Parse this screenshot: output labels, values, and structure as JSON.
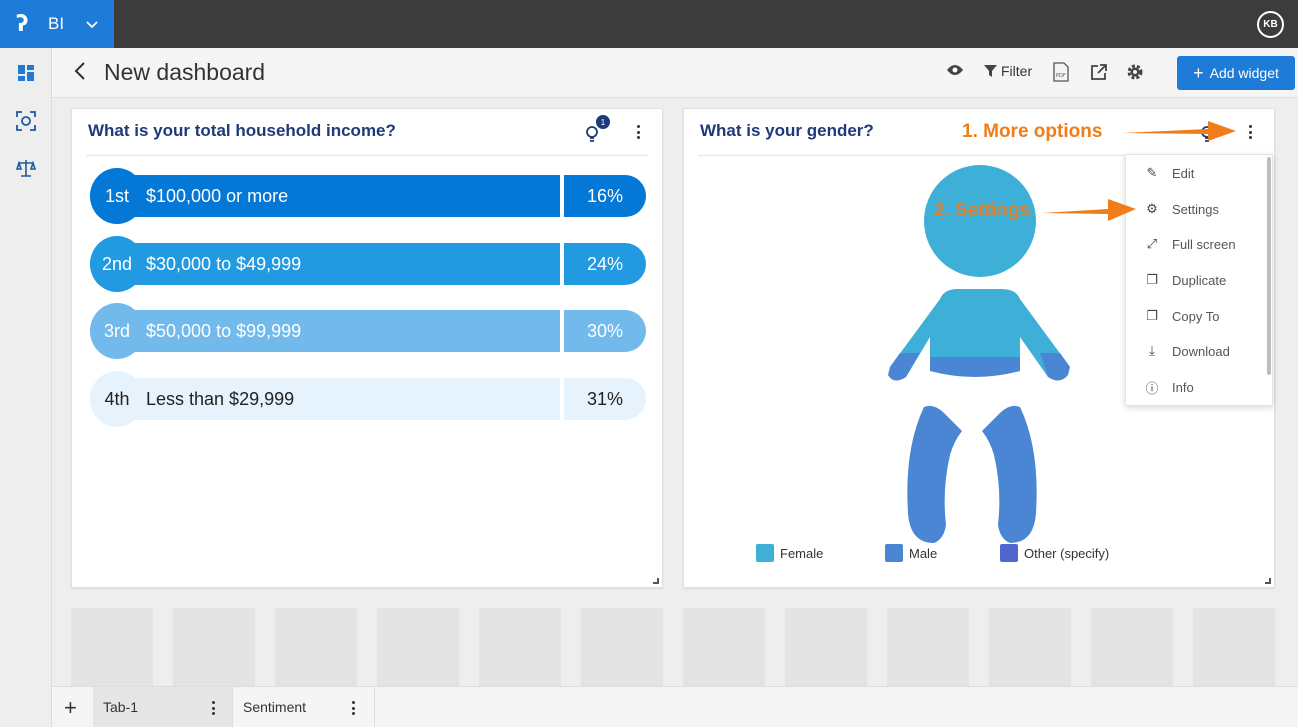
{
  "app": {
    "name": "BI",
    "user_initials": "KB"
  },
  "header": {
    "title": "New dashboard",
    "filter_label": "Filter",
    "add_widget_label": "Add widget"
  },
  "widgets": {
    "income": {
      "title": "What is your total household income?",
      "insight_count": "1",
      "rows": [
        {
          "rank": "1st",
          "label": "$100,000 or more",
          "pct": "16%"
        },
        {
          "rank": "2nd",
          "label": "$30,000 to $49,999",
          "pct": "24%"
        },
        {
          "rank": "3rd",
          "label": "$50,000 to $99,999",
          "pct": "30%"
        },
        {
          "rank": "4th",
          "label": "Less than $29,999",
          "pct": "31%"
        }
      ]
    },
    "gender": {
      "title": "What is your gender?",
      "legend": [
        {
          "label": "Female",
          "color": "#3eb0d8"
        },
        {
          "label": "Male",
          "color": "#4a86d4"
        },
        {
          "label": "Other (specify)",
          "color": "#5266d0"
        }
      ]
    }
  },
  "menu": {
    "items": [
      {
        "label": "Edit",
        "icon": "pencil-icon"
      },
      {
        "label": "Settings",
        "icon": "gear-icon"
      },
      {
        "label": "Full screen",
        "icon": "expand-icon"
      },
      {
        "label": "Duplicate",
        "icon": "duplicate-icon"
      },
      {
        "label": "Copy To",
        "icon": "copy-icon"
      },
      {
        "label": "Download",
        "icon": "download-icon"
      },
      {
        "label": "Info",
        "icon": "info-icon"
      }
    ]
  },
  "annotations": {
    "more_options": "1. More options",
    "settings": "2. Settings"
  },
  "tabs": [
    {
      "label": "Tab-1"
    },
    {
      "label": "Sentiment"
    }
  ],
  "colors": {
    "brand": "#1e7bd8",
    "title": "#1e3a78",
    "annotation": "#f07c1a"
  }
}
